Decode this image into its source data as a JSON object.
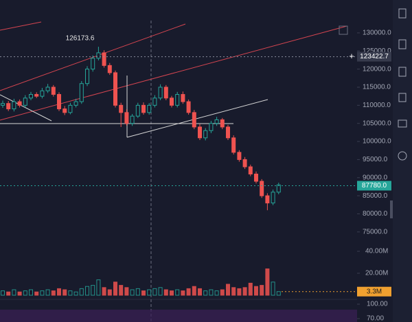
{
  "chart_data": {
    "type": "candlestick",
    "open": [
      110000,
      110500,
      109000,
      111000,
      110000,
      112000,
      113000,
      112500,
      114000,
      115000,
      113000,
      109000,
      108000,
      110000,
      111000,
      116000,
      120000,
      123000,
      124500,
      121000,
      119000,
      110000,
      108000,
      105000,
      107000,
      110000,
      108000,
      110000,
      112000,
      115000,
      112000,
      110000,
      113000,
      111000,
      108000,
      104000,
      101000,
      103000,
      105000,
      106000,
      104000,
      101000,
      97000,
      95000,
      93000,
      91000,
      89000,
      85000,
      83000,
      86000
    ],
    "high": [
      111300,
      111200,
      111800,
      111600,
      112800,
      113700,
      113600,
      114800,
      115900,
      115600,
      113600,
      109800,
      110700,
      111800,
      116700,
      120800,
      123800,
      126173.6,
      125200,
      121700,
      119600,
      110700,
      108900,
      107600,
      110700,
      110800,
      110600,
      112800,
      115800,
      115600,
      112600,
      113700,
      113800,
      111600,
      108700,
      104800,
      103700,
      105700,
      106800,
      106500,
      104600,
      101700,
      97600,
      95700,
      93600,
      91700,
      89600,
      85700,
      86700,
      88600
    ],
    "low": [
      109300,
      108400,
      108300,
      109400,
      109400,
      111400,
      112000,
      111900,
      113400,
      112400,
      108400,
      107300,
      107500,
      109400,
      110400,
      115300,
      119300,
      122400,
      120400,
      118400,
      109400,
      104000,
      104400,
      104300,
      106500,
      107400,
      107400,
      109400,
      111400,
      111400,
      109400,
      109400,
      110400,
      107400,
      103400,
      100400,
      100300,
      102300,
      104300,
      103400,
      100400,
      96400,
      94400,
      92400,
      90400,
      88400,
      84400,
      81000,
      82400,
      85400
    ],
    "close": [
      110500,
      109000,
      111000,
      110000,
      112000,
      113000,
      112500,
      114000,
      115000,
      113000,
      109000,
      108000,
      110000,
      111000,
      116000,
      120000,
      123000,
      124500,
      121000,
      119000,
      110000,
      108000,
      105000,
      107000,
      110000,
      108000,
      110000,
      112000,
      115000,
      112000,
      110000,
      113000,
      111000,
      108000,
      104000,
      101000,
      103000,
      105000,
      106000,
      104000,
      101000,
      97000,
      95000,
      93000,
      91000,
      89000,
      85000,
      83000,
      86000,
      88000
    ],
    "up_color": "#26a69a",
    "down_color": "#ef5350",
    "ylim": [
      67000,
      133400
    ],
    "yticks": [
      {
        "value": 130000,
        "label": "130000.0"
      },
      {
        "value": 125000,
        "label": "125000.0"
      },
      {
        "value": 120000,
        "label": "120000.0"
      },
      {
        "value": 115000,
        "label": "115000.0"
      },
      {
        "value": 110000,
        "label": "110000.0"
      },
      {
        "value": 105000,
        "label": "105000.0"
      },
      {
        "value": 100000,
        "label": "100000.0"
      },
      {
        "value": 95000,
        "label": "95000.0"
      },
      {
        "value": 90000,
        "label": "90000.0"
      },
      {
        "value": 85000,
        "label": "85000.0"
      },
      {
        "value": 80000,
        "label": "80000.0"
      },
      {
        "value": 75000,
        "label": "75000.0"
      }
    ],
    "high_marker": 126173.6,
    "price_lines": [
      123422.7,
      {
        "value": 87780,
        "label": "87780.0"
      }
    ],
    "volume": {
      "values": [
        4,
        3,
        5,
        3,
        4,
        5,
        3,
        4,
        5,
        4,
        6,
        5,
        4,
        3,
        6,
        8,
        9,
        14,
        7,
        5,
        12,
        9,
        7,
        5,
        6,
        4,
        5,
        6,
        7,
        5,
        4,
        5,
        4,
        6,
        8,
        6,
        4,
        5,
        4,
        5,
        10,
        7,
        6,
        7,
        11,
        8,
        9,
        24,
        12,
        3.3
      ],
      "ylim": [
        0,
        43.75
      ],
      "yticks": [
        {
          "value": 40,
          "label": "40.00M"
        },
        {
          "value": 20,
          "label": "20.00M"
        }
      ],
      "last": {
        "value": 3.3,
        "label": "3.3M"
      }
    },
    "oscillator": {
      "ylim": [
        63,
        110
      ],
      "yticks": [
        {
          "value": 100,
          "label": "100.00"
        },
        {
          "value": 70,
          "label": "70.00"
        }
      ]
    }
  }
}
